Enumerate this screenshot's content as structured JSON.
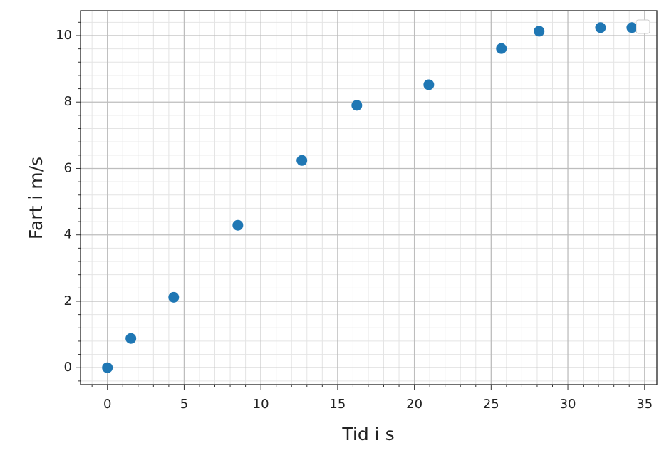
{
  "chart_data": {
    "type": "scatter",
    "xlabel": "Tid i s",
    "ylabel": "Fart i m/s",
    "series": [
      {
        "color": "#1f77b4",
        "x": [
          0,
          1.53,
          4.32,
          8.5,
          12.67,
          16.25,
          20.94,
          25.67,
          28.13,
          32.13,
          34.17
        ],
        "values": [
          0,
          0.88,
          2.12,
          4.29,
          6.24,
          7.9,
          8.52,
          9.61,
          10.13,
          10.24,
          10.24
        ]
      }
    ],
    "xlim": [
      -1.75,
      35.8
    ],
    "ylim": [
      -0.51,
      10.75
    ],
    "xticks": [
      0,
      5,
      10,
      15,
      20,
      25,
      30,
      35
    ],
    "yticks": [
      0,
      2,
      4,
      6,
      8,
      10
    ],
    "xminorticks": [
      -1,
      1,
      2,
      3,
      4,
      6,
      7,
      8,
      9,
      11,
      12,
      13,
      14,
      16,
      17,
      18,
      19,
      21,
      22,
      23,
      24,
      26,
      27,
      28,
      29,
      31,
      32,
      33,
      34
    ],
    "yminorticks": [
      -0.4,
      0.4,
      0.8,
      1.2,
      1.6,
      2.4,
      2.8,
      3.2,
      3.6,
      4.4,
      4.8,
      5.2,
      5.6,
      6.4,
      6.8,
      7.2,
      7.6,
      8.4,
      8.8,
      9.2,
      9.6,
      10.4
    ],
    "grid": true,
    "minor_grid": true
  }
}
